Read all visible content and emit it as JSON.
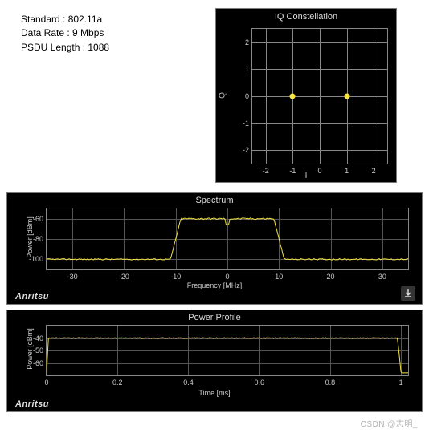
{
  "info": {
    "standard_label": "Standard : 802.11a",
    "data_rate_label": "Data Rate :  9 Mbps",
    "psdu_label": "PSDU Length : 1088"
  },
  "iq": {
    "title": "IQ Constellation",
    "xlabel": "I",
    "ylabel": "Q",
    "xlim": [
      -2.5,
      2.5
    ],
    "ylim": [
      -2.5,
      2.5
    ],
    "xticks": [
      -2,
      -1,
      0,
      1,
      2
    ],
    "yticks": [
      -2,
      -1,
      0,
      1,
      2
    ],
    "grid_color": "#888888",
    "background": "#000000",
    "tick_color": "#cccccc",
    "point_color": "#f5e642",
    "points": [
      {
        "x": -1,
        "y": 0
      },
      {
        "x": 1,
        "y": 0
      }
    ]
  },
  "spectrum": {
    "title": "Spectrum",
    "ylabel": "Power [dBm]",
    "xlabel": "Frequency [MHz]",
    "brand": "Anritsu",
    "trace_color": "#f5e642",
    "grid_color": "#555555",
    "background": "#000000",
    "xlim": [
      -35,
      35
    ],
    "ylim": [
      -110,
      -50
    ],
    "xticks": [
      -30,
      -20,
      -10,
      0,
      10,
      20,
      30
    ],
    "yticks": [
      -100,
      -80,
      -60
    ],
    "noise_floor": -100,
    "shoulder_start": -11,
    "shoulder_end": 11,
    "passband_start": -9,
    "passband_end": 9,
    "passband_level": -60,
    "notch_freq": 0,
    "notch_depth": -66,
    "noise_jitter": 1.2,
    "passband_jitter": 1.5
  },
  "power": {
    "title": "Power Profile",
    "ylabel": "Power [dBm]",
    "xlabel": "Time [ms]",
    "brand": "Anritsu",
    "trace_color": "#f5e642",
    "grid_color": "#555555",
    "background": "#000000",
    "xlim": [
      0,
      1.02
    ],
    "ylim": [
      -70,
      -30
    ],
    "xticks": [
      0,
      0.2,
      0.4,
      0.6,
      0.8,
      1
    ],
    "yticks": [
      -60,
      -50,
      -40
    ],
    "on_level": -40,
    "off_level": -68,
    "rise_time": 0.005,
    "fall_time": 0.99,
    "end_time": 1.0,
    "jitter": 0.6
  },
  "watermark": "CSDN @志明_",
  "download_icon_label": "download"
}
